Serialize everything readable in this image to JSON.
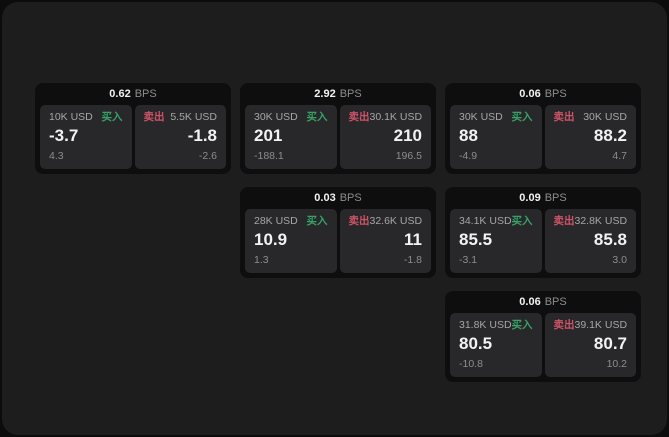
{
  "labels": {
    "bps_unit": "BPS",
    "buy": "买入",
    "sell": "卖出"
  },
  "colors": {
    "page_bg": "#0c0c0d",
    "container_bg": "#1d1d1e",
    "card_bg": "#0e0e0f",
    "panel_bg": "#28282a",
    "value_text": "#f2f2f2",
    "label_text": "#a6a6a6",
    "muted_text": "#8d8d8d",
    "buy_green": "#36a266",
    "sell_red": "#cf5268"
  },
  "cards": [
    {
      "row": 1,
      "col": 1,
      "bps": "0.62",
      "buy": {
        "notional": "10K USD",
        "price": "-3.7",
        "delta": "4.3"
      },
      "sell": {
        "notional": "5.5K USD",
        "price": "-1.8",
        "delta": "-2.6"
      }
    },
    {
      "row": 1,
      "col": 2,
      "bps": "2.92",
      "buy": {
        "notional": "30K USD",
        "price": "201",
        "delta": "-188.1"
      },
      "sell": {
        "notional": "30.1K USD",
        "price": "210",
        "delta": "196.5"
      }
    },
    {
      "row": 1,
      "col": 3,
      "bps": "0.06",
      "buy": {
        "notional": "30K USD",
        "price": "88",
        "delta": "-4.9"
      },
      "sell": {
        "notional": "30K USD",
        "price": "88.2",
        "delta": "4.7"
      }
    },
    {
      "row": 2,
      "col": 2,
      "bps": "0.03",
      "buy": {
        "notional": "28K USD",
        "price": "10.9",
        "delta": "1.3"
      },
      "sell": {
        "notional": "32.6K USD",
        "price": "11",
        "delta": "-1.8"
      }
    },
    {
      "row": 2,
      "col": 3,
      "bps": "0.09",
      "buy": {
        "notional": "34.1K USD",
        "price": "85.5",
        "delta": "-3.1"
      },
      "sell": {
        "notional": "32.8K USD",
        "price": "85.8",
        "delta": "3.0"
      }
    },
    {
      "row": 3,
      "col": 3,
      "bps": "0.06",
      "buy": {
        "notional": "31.8K USD",
        "price": "80.5",
        "delta": "-10.8"
      },
      "sell": {
        "notional": "39.1K USD",
        "price": "80.7",
        "delta": "10.2"
      }
    }
  ]
}
